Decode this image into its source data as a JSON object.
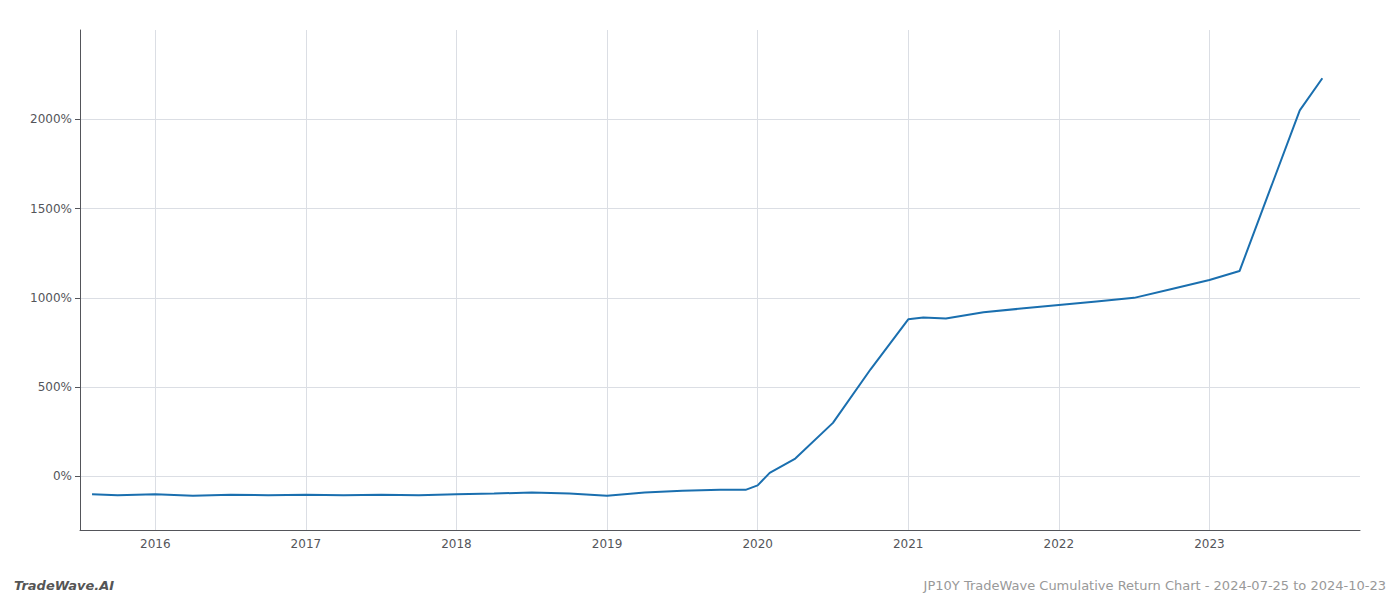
{
  "chart_data": {
    "type": "line",
    "x": [
      2015.58,
      2015.75,
      2016.0,
      2016.25,
      2016.5,
      2016.75,
      2017.0,
      2017.25,
      2017.5,
      2017.75,
      2018.0,
      2018.25,
      2018.5,
      2018.75,
      2019.0,
      2019.25,
      2019.5,
      2019.75,
      2019.92,
      2020.0,
      2020.08,
      2020.25,
      2020.5,
      2020.75,
      2021.0,
      2021.1,
      2021.25,
      2021.5,
      2021.75,
      2022.0,
      2022.25,
      2022.5,
      2022.75,
      2023.0,
      2023.2,
      2023.4,
      2023.6,
      2023.75
    ],
    "values": [
      -100,
      -105,
      -100,
      -108,
      -102,
      -105,
      -102,
      -105,
      -102,
      -106,
      -100,
      -96,
      -90,
      -95,
      -108,
      -90,
      -80,
      -75,
      -75,
      -50,
      20,
      100,
      300,
      600,
      880,
      890,
      885,
      920,
      940,
      960,
      980,
      1000,
      1050,
      1100,
      1150,
      1600,
      2050,
      2230
    ],
    "color": "#1a6faf",
    "xlim": [
      2015.5,
      2024.0
    ],
    "xticks": [
      2016,
      2017,
      2018,
      2019,
      2020,
      2021,
      2022,
      2023
    ],
    "ylim": [
      -300,
      2500
    ],
    "yticks": [
      {
        "value": 0,
        "label": "0%"
      },
      {
        "value": 500,
        "label": "500%"
      },
      {
        "value": 1000,
        "label": "1000%"
      },
      {
        "value": 1500,
        "label": "1500%"
      },
      {
        "value": 2000,
        "label": "2000%"
      }
    ],
    "grid": true,
    "annotations": [
      "TradeWave.AI",
      "JP10Y TradeWave Cumulative Return Chart - 2024-07-25 to 2024-10-23"
    ]
  }
}
